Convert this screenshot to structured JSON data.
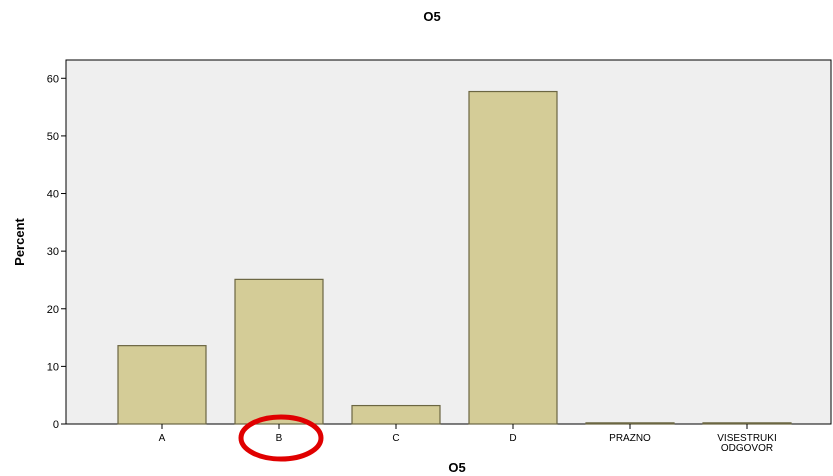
{
  "chart_data": {
    "type": "bar",
    "title": "O5",
    "xlabel": "O5",
    "ylabel": "Percent",
    "categories": [
      [
        "A"
      ],
      [
        "B"
      ],
      [
        "C"
      ],
      [
        "D"
      ],
      [
        "PRAZNO"
      ],
      [
        "VISESTRUKI",
        "ODGOVOR"
      ]
    ],
    "values": [
      13.6,
      25.1,
      3.2,
      57.7,
      0.2,
      0.2
    ],
    "ylim": [
      0,
      63
    ],
    "yticks": [
      0,
      10,
      20,
      30,
      40,
      50,
      60
    ],
    "grid": false,
    "legend": "none",
    "highlight_category_index": 1,
    "colors": {
      "plot_background": "#efefef",
      "bar_fill": "#d4cc97",
      "bar_stroke": "#6b6642",
      "axis": "#000000",
      "highlight_circle": "#e00000"
    }
  }
}
